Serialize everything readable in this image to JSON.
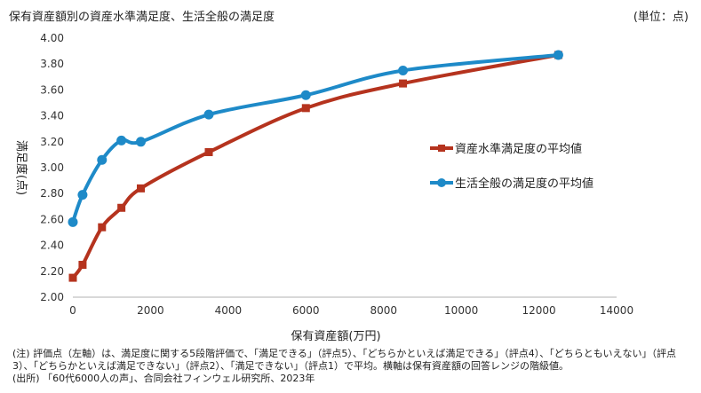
{
  "header": {
    "title": "保有資産額別の資産水準満足度、生活全般の満足度",
    "unit": "(単位：点)"
  },
  "chart_data": {
    "type": "line",
    "xlabel": "保有資産額(万円)",
    "ylabel": "満足度(点)",
    "xlim": [
      0,
      14000
    ],
    "ylim": [
      2.0,
      4.0
    ],
    "xticks": [
      "0",
      "2000",
      "4000",
      "6000",
      "8000",
      "10000",
      "12000",
      "14000"
    ],
    "yticks": [
      "2.00",
      "2.20",
      "2.40",
      "2.60",
      "2.80",
      "3.00",
      "3.20",
      "3.40",
      "3.60",
      "3.80",
      "4.00"
    ],
    "grid": false,
    "legend_position": "right",
    "series": [
      {
        "name": "資産水準満足度の平均値",
        "color": "#b5331e",
        "points": [
          [
            0,
            2.15
          ],
          [
            250,
            2.25
          ],
          [
            750,
            2.54
          ],
          [
            1250,
            2.69
          ],
          [
            1750,
            2.84
          ],
          [
            3500,
            3.12
          ],
          [
            6000,
            3.46
          ],
          [
            8500,
            3.65
          ],
          [
            12500,
            3.87
          ]
        ]
      },
      {
        "name": "生活全般の満足度の平均値",
        "color": "#1e8ac8",
        "points": [
          [
            0,
            2.58
          ],
          [
            250,
            2.79
          ],
          [
            750,
            3.06
          ],
          [
            1250,
            3.21
          ],
          [
            1750,
            3.2
          ],
          [
            3500,
            3.41
          ],
          [
            6000,
            3.56
          ],
          [
            8500,
            3.75
          ],
          [
            12500,
            3.87
          ]
        ]
      }
    ]
  },
  "notes": {
    "note1": "(注) 評価点（左軸）は、満足度に関する5段階評価で、「満足できる」（評点5）、「どちらかといえば満足できる」（評点4）、「どちらともいえない」（評点3）、「どちらかといえば満足できない」（評点2）、「満足できない」（評点1）で平均。横軸は保有資産額の回答レンジの階級値。",
    "source": "(出所) 「60代6000人の声」、合同会社フィンウェル研究所、2023年"
  }
}
